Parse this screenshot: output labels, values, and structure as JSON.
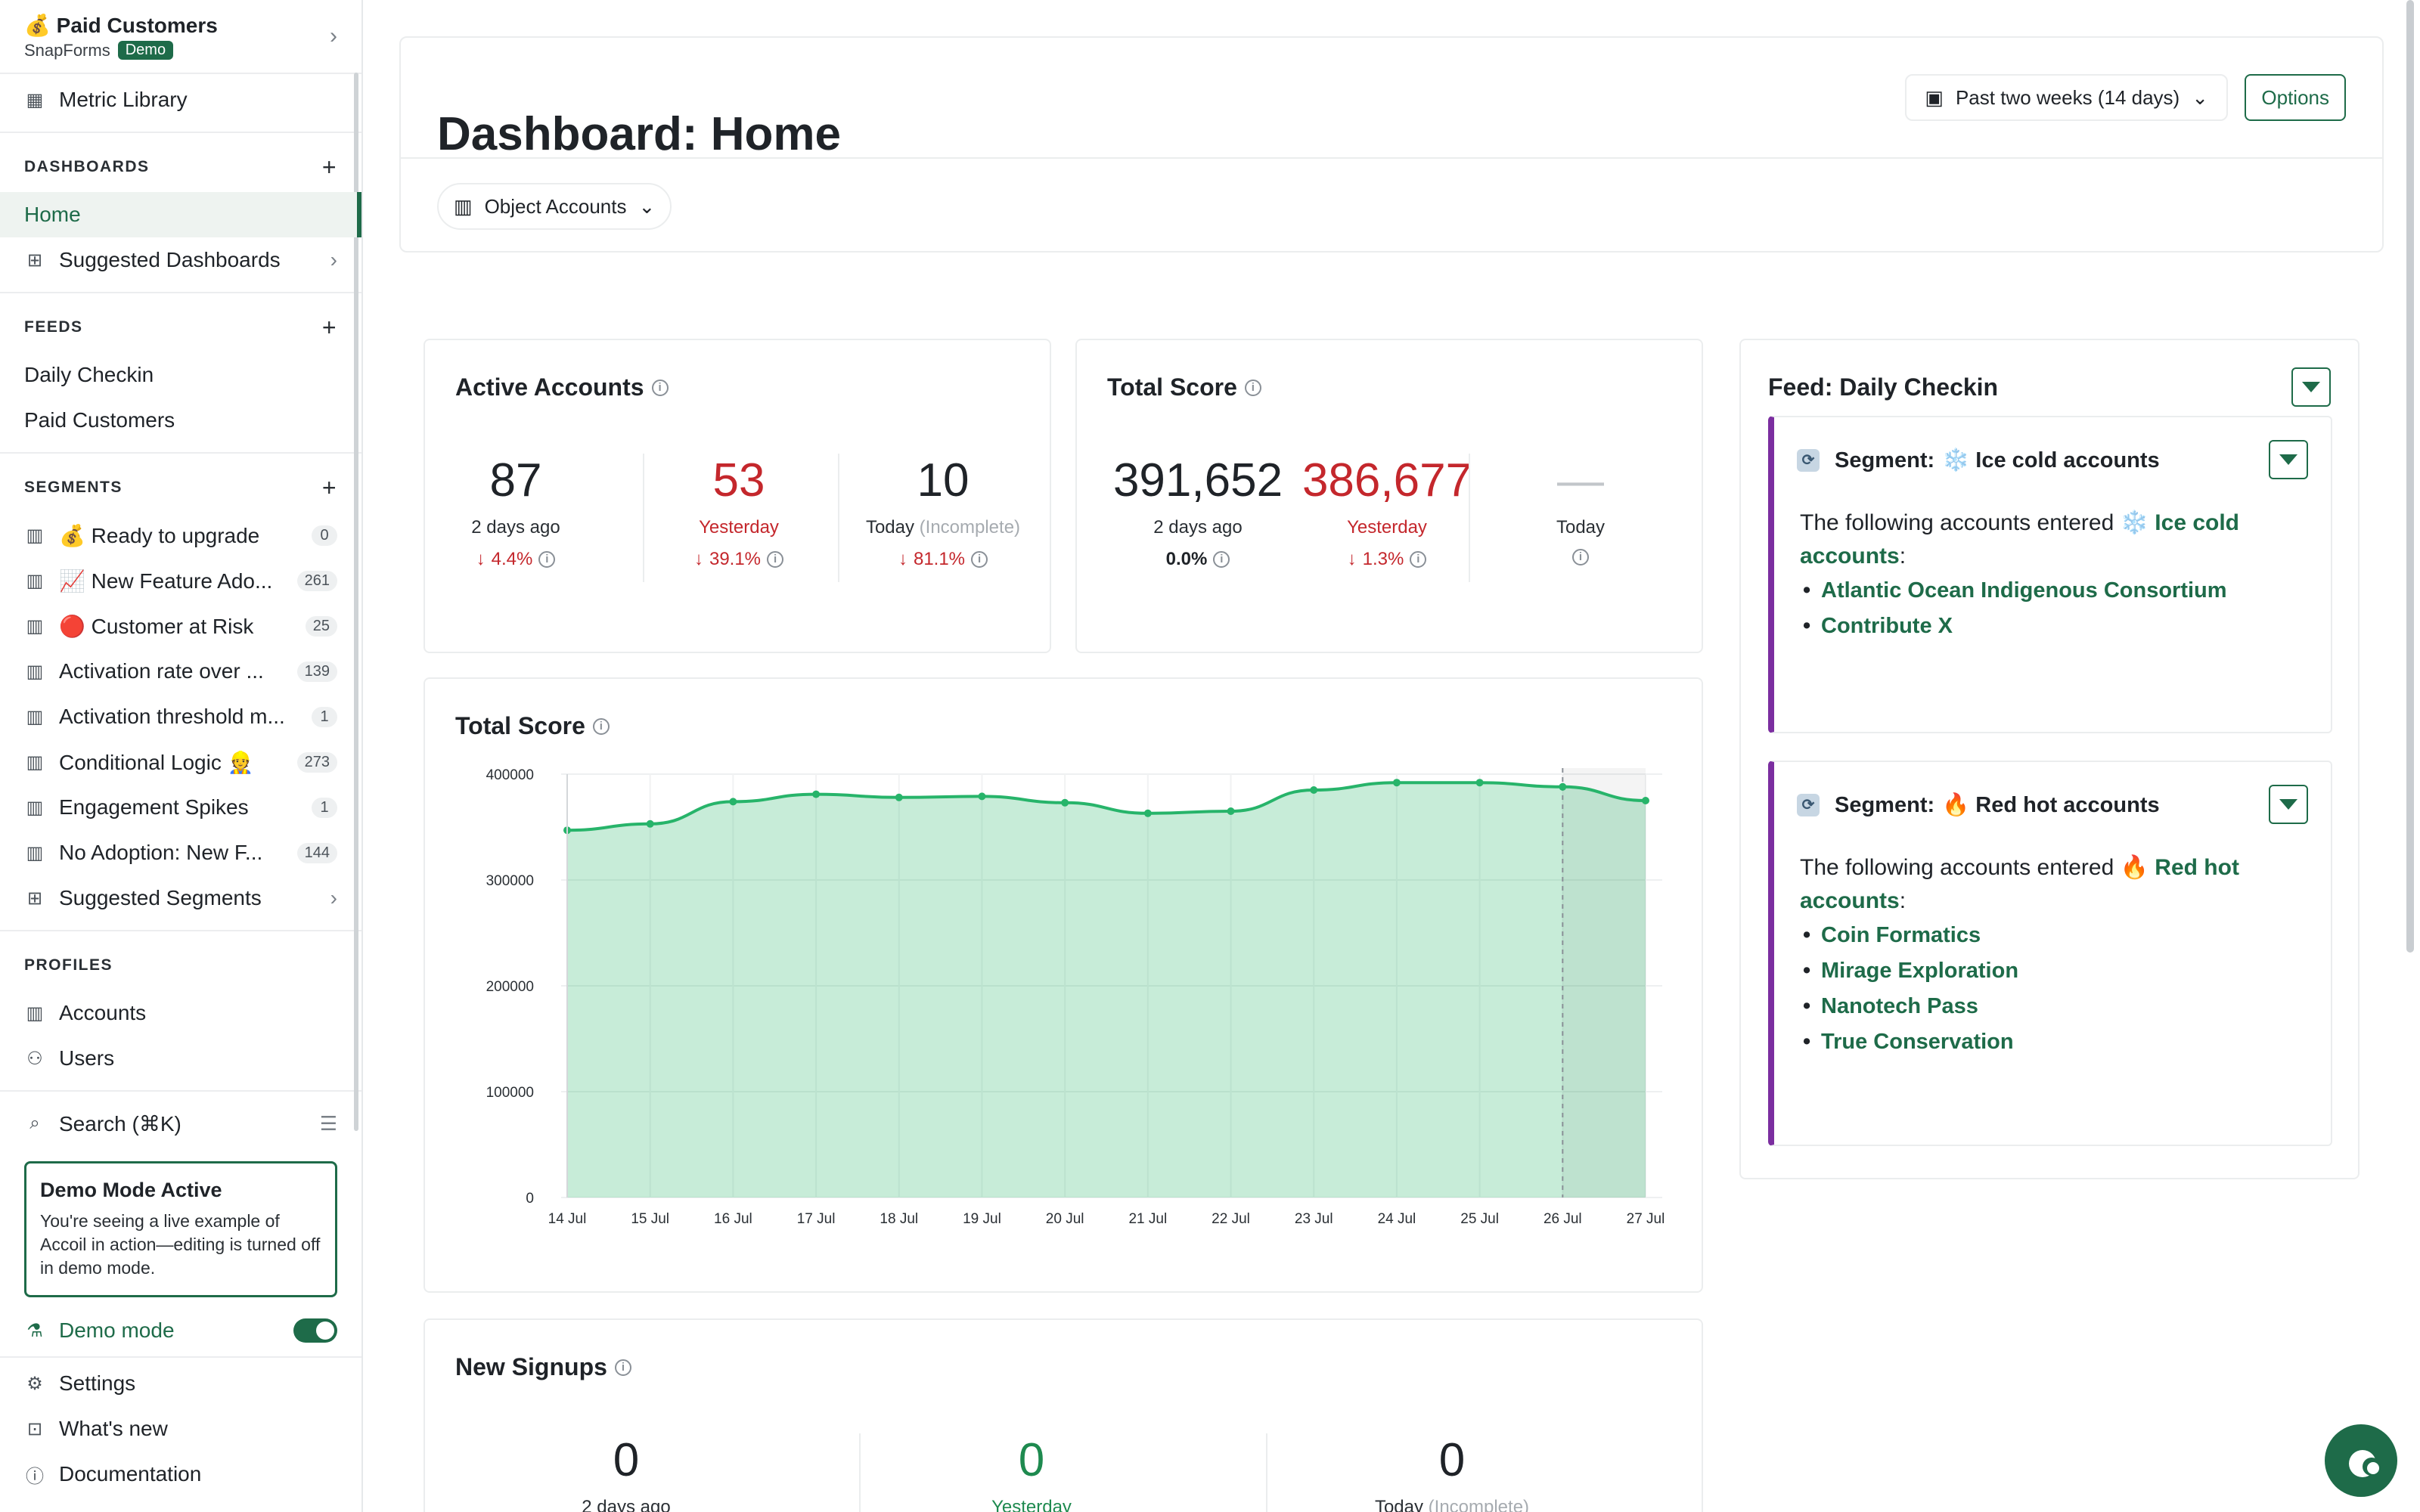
{
  "sidebar": {
    "workspace": {
      "title": "💰 Paid Customers",
      "company": "SnapForms",
      "badge": "Demo"
    },
    "metric_library": "Metric Library",
    "dashboards": {
      "title": "DASHBOARDS",
      "items": [
        {
          "label": "Home"
        },
        {
          "label": "Suggested Dashboards"
        }
      ]
    },
    "feeds": {
      "title": "FEEDS",
      "items": [
        {
          "label": "Daily Checkin"
        },
        {
          "label": "Paid Customers"
        }
      ]
    },
    "segments": {
      "title": "SEGMENTS",
      "items": [
        {
          "label": "💰 Ready to upgrade",
          "count": "0"
        },
        {
          "label": "📈 New Feature Ado...",
          "count": "261"
        },
        {
          "label": "🔴 Customer at Risk",
          "count": "25"
        },
        {
          "label": "Activation rate over ...",
          "count": "139"
        },
        {
          "label": "Activation threshold m...",
          "count": "1"
        },
        {
          "label": "Conditional Logic 👷",
          "count": "273"
        },
        {
          "label": "Engagement Spikes",
          "count": "1"
        },
        {
          "label": "No Adoption: New F...",
          "count": "144"
        },
        {
          "label": "Suggested Segments",
          "count": ""
        }
      ]
    },
    "profiles": {
      "title": "PROFILES",
      "items": [
        {
          "label": "Accounts"
        },
        {
          "label": "Users"
        }
      ]
    },
    "search": "Search (⌘K)",
    "demo_box": {
      "title": "Demo Mode Active",
      "desc": "You're seeing a live example of Accoil in action—editing is turned off in demo mode."
    },
    "demo_mode": "Demo mode",
    "settings": "Settings",
    "whats_new": "What's new",
    "documentation": "Documentation"
  },
  "header": {
    "title": "Dashboard: Home",
    "date_range": "Past two weeks (14 days)",
    "options": "Options",
    "object_filter": "Object Accounts"
  },
  "active_accounts": {
    "title": "Active Accounts",
    "stats": [
      {
        "value": "87",
        "label": "2 days ago",
        "change": "4.4%"
      },
      {
        "value": "53",
        "label": "Yesterday",
        "change": "39.1%"
      },
      {
        "value": "10",
        "label": "Today",
        "label_note": "(Incomplete)",
        "change": "81.1%"
      }
    ]
  },
  "total_score_card": {
    "title": "Total Score",
    "stats": [
      {
        "value": "391,652",
        "label": "2 days ago",
        "change": "0.0%"
      },
      {
        "value": "386,677",
        "label": "Yesterday",
        "change": "1.3%"
      },
      {
        "value": "—",
        "label": "Today"
      }
    ]
  },
  "chart_title": "Total Score",
  "chart_data": {
    "type": "area",
    "x": [
      "14 Jul",
      "15 Jul",
      "16 Jul",
      "17 Jul",
      "18 Jul",
      "19 Jul",
      "20 Jul",
      "21 Jul",
      "22 Jul",
      "23 Jul",
      "24 Jul",
      "25 Jul",
      "26 Jul",
      "27 Jul"
    ],
    "series": [
      {
        "values": [
          347000,
          353000,
          374000,
          381000,
          378000,
          379000,
          373000,
          363000,
          365000,
          385000,
          392000,
          392000,
          388000,
          375000
        ]
      }
    ],
    "yticks": [
      "0",
      "100000",
      "200000",
      "300000",
      "400000"
    ],
    "ylim": [
      0,
      400000
    ],
    "incomplete_from": "26 Jul",
    "color": "#27b46a"
  },
  "new_signups": {
    "title": "New Signups",
    "stats": [
      {
        "value": "0",
        "label": "2 days ago"
      },
      {
        "value": "0",
        "label": "Yesterday"
      },
      {
        "value": "0",
        "label": "Today",
        "label_note": "(Incomplete)"
      }
    ]
  },
  "feed": {
    "title": "Feed: Daily Checkin",
    "segments": [
      {
        "prefix": "Segment:",
        "name": "❄️ Ice cold accounts",
        "intro": "The following accounts entered",
        "link": "❄️ Ice cold accounts",
        "accounts": [
          "Atlantic Ocean Indigenous Consortium",
          "Contribute X"
        ]
      },
      {
        "prefix": "Segment:",
        "name": "🔥 Red hot accounts",
        "intro": "The following accounts entered",
        "link": "🔥 Red hot accounts",
        "accounts": [
          "Coin Formatics",
          "Mirage Exploration",
          "Nanotech Pass",
          "True Conservation"
        ]
      }
    ]
  },
  "colors": {
    "accent": "#1e6b49",
    "negative": "#c4272c",
    "positive": "#1e8a4f",
    "segment_bar": "#7b2ea0"
  }
}
